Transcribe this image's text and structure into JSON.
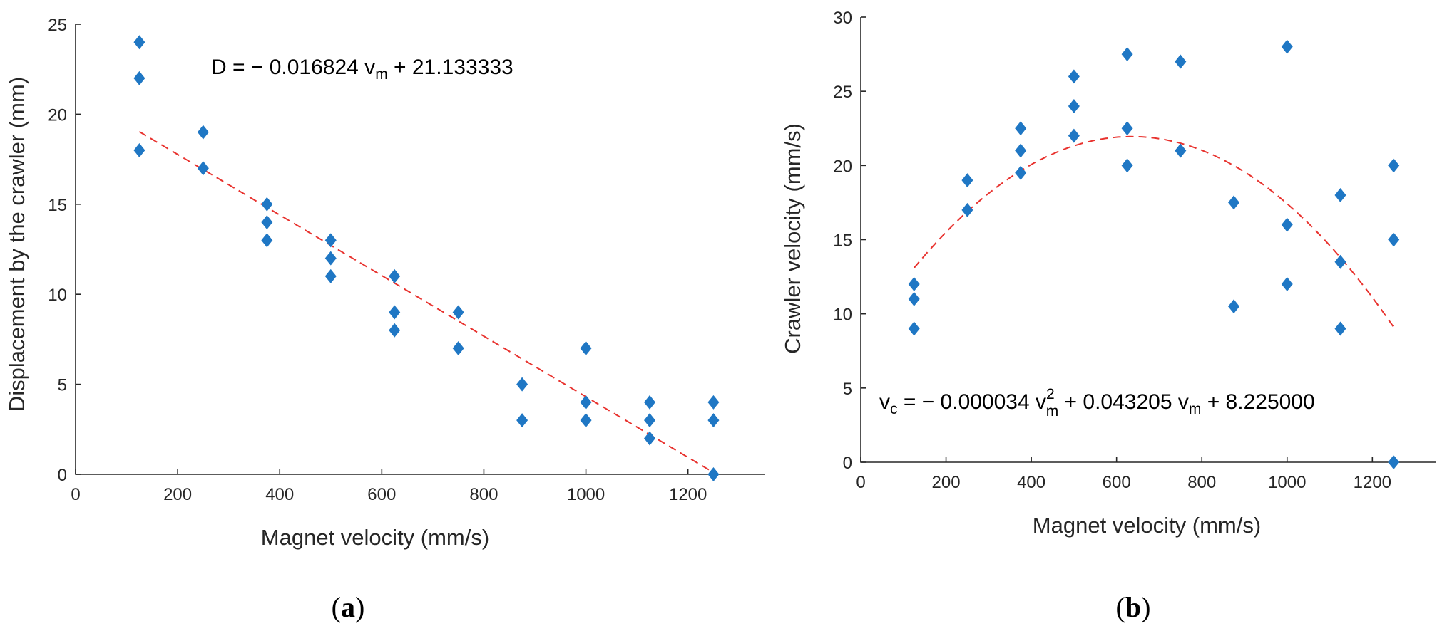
{
  "marker_color": "#1f77c4",
  "fit_color": "#e8322e",
  "chart_data": [
    {
      "type": "scatter",
      "panel_label": "(a)",
      "panel_letter": "a",
      "xlabel": "Magnet velocity (mm/s)",
      "ylabel": "Displacement by the crawler (mm)",
      "xlim": [
        0,
        1350
      ],
      "ylim": [
        0,
        25
      ],
      "xticks": [
        0,
        200,
        400,
        600,
        800,
        1000,
        1200
      ],
      "yticks": [
        0,
        5,
        10,
        15,
        20,
        25
      ],
      "points": [
        [
          125,
          24
        ],
        [
          125,
          22
        ],
        [
          125,
          18
        ],
        [
          250,
          19
        ],
        [
          250,
          17
        ],
        [
          375,
          15
        ],
        [
          375,
          14
        ],
        [
          375,
          13
        ],
        [
          500,
          13
        ],
        [
          500,
          12
        ],
        [
          500,
          11
        ],
        [
          625,
          11
        ],
        [
          625,
          9
        ],
        [
          625,
          8
        ],
        [
          750,
          9
        ],
        [
          750,
          7
        ],
        [
          875,
          5
        ],
        [
          875,
          3
        ],
        [
          1000,
          7
        ],
        [
          1000,
          4
        ],
        [
          1000,
          3
        ],
        [
          1125,
          4
        ],
        [
          1125,
          3
        ],
        [
          1125,
          2
        ],
        [
          1250,
          4
        ],
        [
          1250,
          3
        ],
        [
          1250,
          0
        ]
      ],
      "fit": {
        "type": "linear",
        "a": -0.016824,
        "b": 21.133333,
        "x_range": [
          125,
          1250
        ]
      },
      "equation": {
        "lhs": "D",
        "eq1": " = − 0.016824 v",
        "sub1": "m",
        "eq2": " + 21.133333"
      }
    },
    {
      "type": "scatter",
      "panel_label": "(b)",
      "panel_letter": "b",
      "xlabel": "Magnet velocity (mm/s)",
      "ylabel": "Crawler velocity (mm/s)",
      "xlim": [
        0,
        1350
      ],
      "ylim": [
        0,
        30
      ],
      "xticks": [
        0,
        200,
        400,
        600,
        800,
        1000,
        1200
      ],
      "yticks": [
        0,
        5,
        10,
        15,
        20,
        25,
        30
      ],
      "points": [
        [
          125,
          12
        ],
        [
          125,
          11
        ],
        [
          125,
          9
        ],
        [
          250,
          19
        ],
        [
          250,
          17
        ],
        [
          375,
          22.5
        ],
        [
          375,
          21
        ],
        [
          375,
          19.5
        ],
        [
          500,
          26
        ],
        [
          500,
          24
        ],
        [
          500,
          22
        ],
        [
          625,
          27.5
        ],
        [
          625,
          22.5
        ],
        [
          625,
          20
        ],
        [
          750,
          27
        ],
        [
          750,
          21
        ],
        [
          875,
          17.5
        ],
        [
          875,
          10.5
        ],
        [
          1000,
          28
        ],
        [
          1000,
          16
        ],
        [
          1000,
          12
        ],
        [
          1125,
          18
        ],
        [
          1125,
          13.5
        ],
        [
          1125,
          9
        ],
        [
          1250,
          20
        ],
        [
          1250,
          15
        ],
        [
          1250,
          0
        ]
      ],
      "fit": {
        "type": "quadratic",
        "a": -3.4e-05,
        "b": 0.043205,
        "c": 8.225,
        "x_range": [
          125,
          1250
        ]
      },
      "equation": {
        "lhs": "v",
        "lhs_sub": "c",
        "eq1": " = − 0.000034 v",
        "sup1": "2",
        "sub1": "m",
        "eq2": " + 0.043205 v",
        "sub2": "m",
        "eq3": " + 8.225000"
      }
    }
  ]
}
